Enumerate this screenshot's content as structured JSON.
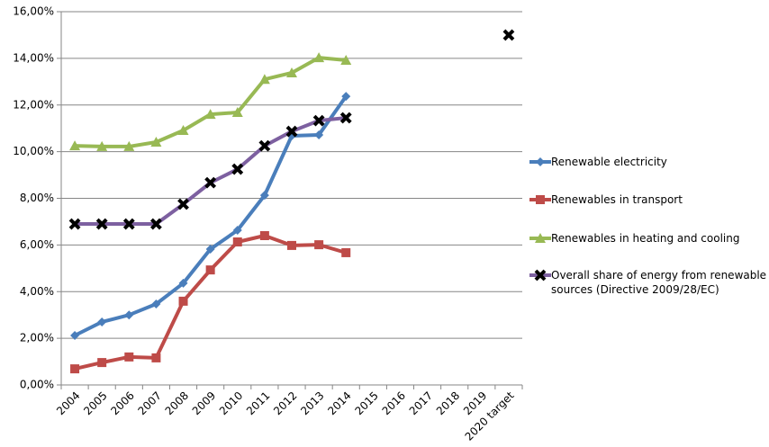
{
  "chart_data": {
    "type": "line",
    "categories": [
      "2004",
      "2005",
      "2006",
      "2007",
      "2008",
      "2009",
      "2010",
      "2011",
      "2012",
      "2013",
      "2014",
      "2015",
      "2016",
      "2017",
      "2018",
      "2019",
      "2020 target"
    ],
    "series": [
      {
        "name": "Renewable electricity",
        "color": "#4a7ebb",
        "marker": "diamond",
        "marker_color": "#4a7ebb",
        "values": [
          2.12,
          2.7,
          3.0,
          3.47,
          4.36,
          5.82,
          6.63,
          8.13,
          10.68,
          10.72,
          12.37,
          null,
          null,
          null,
          null,
          null,
          null
        ]
      },
      {
        "name": "Renewables in transport",
        "color": "#be4b48",
        "marker": "square",
        "marker_color": "#be4b48",
        "values": [
          0.69,
          0.96,
          1.2,
          1.16,
          3.59,
          4.93,
          6.13,
          6.4,
          5.98,
          6.01,
          5.67,
          null,
          null,
          null,
          null,
          null,
          null
        ]
      },
      {
        "name": "Renewables in heating and cooling",
        "color": "#98b954",
        "marker": "triangle",
        "marker_color": "#98b954",
        "values": [
          10.25,
          10.22,
          10.22,
          10.41,
          10.91,
          11.6,
          11.68,
          13.1,
          13.38,
          14.03,
          13.92,
          null,
          null,
          null,
          null,
          null,
          null
        ]
      },
      {
        "name": "Overall share of energy from renewable sources (Directive 2009/28/EC)",
        "color": "#7d60a0",
        "marker": "x",
        "marker_color": "#000000",
        "values": [
          6.9,
          6.9,
          6.9,
          6.9,
          7.75,
          8.67,
          9.25,
          10.25,
          10.87,
          11.33,
          11.45,
          null,
          null,
          null,
          null,
          null,
          15.0
        ]
      }
    ],
    "ylim": [
      0,
      16
    ],
    "yticks": [
      {
        "value": 0,
        "label": "0,00%"
      },
      {
        "value": 2,
        "label": "2,00%"
      },
      {
        "value": 4,
        "label": "4,00%"
      },
      {
        "value": 6,
        "label": "6,00%"
      },
      {
        "value": 8,
        "label": "8,00%"
      },
      {
        "value": 10,
        "label": "10,00%"
      },
      {
        "value": 12,
        "label": "12,00%"
      },
      {
        "value": 14,
        "label": "14,00%"
      },
      {
        "value": 16,
        "label": "16,00%"
      }
    ],
    "grid": true,
    "legend": "right"
  }
}
